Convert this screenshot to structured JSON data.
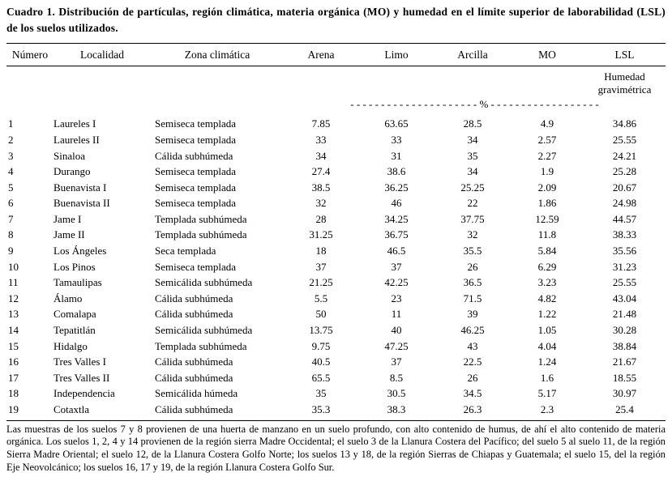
{
  "title": "Cuadro 1. Distribución de partículas, región climática, materia orgánica (MO) y humedad en el límite superior de laborabilidad (LSL) de los suelos utilizados.",
  "table": {
    "columns": [
      "Número",
      "Localidad",
      "Zona climática",
      "Arena",
      "Limo",
      "Arcilla",
      "MO",
      "LSL"
    ],
    "lsl_subheader": "Humedad gravimétrica",
    "units_row": "- - - - - - - - - - - - - - - - - - - - - % - - - - - - - - - - - - - - - - - -",
    "rows": [
      [
        "1",
        "Laureles I",
        "Semiseca templada",
        "7.85",
        "63.65",
        "28.5",
        "4.9",
        "34.86"
      ],
      [
        "2",
        "Laureles II",
        "Semiseca templada",
        "33",
        "33",
        "34",
        "2.57",
        "25.55"
      ],
      [
        "3",
        "Sinaloa",
        "Cálida subhúmeda",
        "34",
        "31",
        "35",
        "2.27",
        "24.21"
      ],
      [
        "4",
        "Durango",
        "Semiseca templada",
        "27.4",
        "38.6",
        "34",
        "1.9",
        "25.28"
      ],
      [
        "5",
        "Buenavista I",
        "Semiseca templada",
        "38.5",
        "36.25",
        "25.25",
        "2.09",
        "20.67"
      ],
      [
        "6",
        "Buenavista II",
        "Semiseca templada",
        "32",
        "46",
        "22",
        "1.86",
        "24.98"
      ],
      [
        "7",
        "Jame I",
        "Templada subhúmeda",
        "28",
        "34.25",
        "37.75",
        "12.59",
        "44.57"
      ],
      [
        "8",
        "Jame II",
        "Templada subhúmeda",
        "31.25",
        "36.75",
        "32",
        "11.8",
        "38.33"
      ],
      [
        "9",
        "Los Ángeles",
        "Seca templada",
        "18",
        "46.5",
        "35.5",
        "5.84",
        "35.56"
      ],
      [
        "10",
        "Los Pinos",
        "Semiseca templada",
        "37",
        "37",
        "26",
        "6.29",
        "31.23"
      ],
      [
        "11",
        "Tamaulipas",
        "Semicálida subhúmeda",
        "21.25",
        "42.25",
        "36.5",
        "3.23",
        "25.55"
      ],
      [
        "12",
        "Álamo",
        "Cálida subhúmeda",
        "5.5",
        "23",
        "71.5",
        "4.82",
        "43.04"
      ],
      [
        "13",
        "Comalapa",
        "Cálida subhúmeda",
        "50",
        "11",
        "39",
        "1.22",
        "21.48"
      ],
      [
        "14",
        "Tepatitlán",
        "Semicálida subhúmeda",
        "13.75",
        "40",
        "46.25",
        "1.05",
        "30.28"
      ],
      [
        "15",
        "Hidalgo",
        "Templada subhúmeda",
        "9.75",
        "47.25",
        "43",
        "4.04",
        "38.84"
      ],
      [
        "16",
        "Tres Valles I",
        "Cálida subhúmeda",
        "40.5",
        "37",
        "22.5",
        "1.24",
        "21.67"
      ],
      [
        "17",
        "Tres Valles II",
        "Cálida subhúmeda",
        "65.5",
        "8.5",
        "26",
        "1.6",
        "18.55"
      ],
      [
        "18",
        "Independencia",
        "Semicálida húmeda",
        "35",
        "30.5",
        "34.5",
        "5.17",
        "30.97"
      ],
      [
        "19",
        "Cotaxtla",
        "Cálida subhúmeda",
        "35.3",
        "38.3",
        "26.3",
        "2.3",
        "25.4"
      ]
    ]
  },
  "notes": "Las muestras de los suelos 7 y 8 provienen de una huerta de manzano en un suelo profundo, con alto contenido de humus, de ahí el alto contenido de materia orgánica. Los suelos 1, 2, 4 y 14 provienen de la región sierra Madre Occidental; el suelo 3 de la Llanura Costera del Pacífico; del suelo 5 al suelo 11, de la región Sierra Madre Oriental;  el suelo 12, de la Llanura Costera Golfo Norte; los suelos 13 y 18, de la región Sierras de Chiapas y Guatemala; el suelo 15, del la región Eje Neovolcánico; los suelos 16, 17 y 19, de la región Llanura Costera Golfo Sur."
}
